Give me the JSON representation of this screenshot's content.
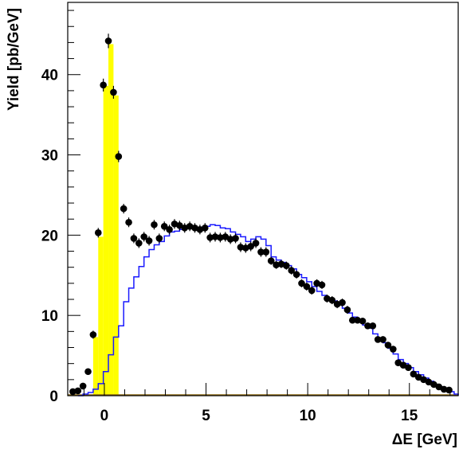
{
  "chart_data": {
    "type": "histogram",
    "xlabel": "ΔE [GeV]",
    "ylabel": "Yield [pb/GeV]",
    "xlim": [
      -1.8,
      17.4
    ],
    "ylim": [
      0,
      49
    ],
    "x_ticks": [
      0,
      5,
      10,
      15
    ],
    "y_ticks": [
      0,
      10,
      20,
      30,
      40
    ],
    "grid": false,
    "colors": {
      "signal_fill": "#ffff00",
      "mc_line": "#1a1aff",
      "data_points": "#000000",
      "baseline": "#8b6914"
    },
    "series": [
      {
        "kind": "data-points-with-errors",
        "points": [
          [
            -1.55,
            0.5,
            0.2
          ],
          [
            -1.3,
            0.6,
            0.2
          ],
          [
            -1.05,
            1.2,
            0.3
          ],
          [
            -0.8,
            3.0,
            0.4
          ],
          [
            -0.55,
            7.6,
            0.5
          ],
          [
            -0.3,
            20.3,
            0.6
          ],
          [
            -0.05,
            38.7,
            0.8
          ],
          [
            0.2,
            44.2,
            0.9
          ],
          [
            0.45,
            37.8,
            0.8
          ],
          [
            0.7,
            29.8,
            0.7
          ],
          [
            0.95,
            23.3,
            0.6
          ],
          [
            1.2,
            21.6,
            0.6
          ],
          [
            1.45,
            19.6,
            0.6
          ],
          [
            1.7,
            19.0,
            0.6
          ],
          [
            1.95,
            19.8,
            0.6
          ],
          [
            2.2,
            19.3,
            0.6
          ],
          [
            2.45,
            21.3,
            0.6
          ],
          [
            2.7,
            19.6,
            0.6
          ],
          [
            2.95,
            21.1,
            0.6
          ],
          [
            3.2,
            20.7,
            0.6
          ],
          [
            3.45,
            21.4,
            0.6
          ],
          [
            3.7,
            21.2,
            0.6
          ],
          [
            3.95,
            20.9,
            0.6
          ],
          [
            4.2,
            21.1,
            0.6
          ],
          [
            4.45,
            20.9,
            0.6
          ],
          [
            4.7,
            20.7,
            0.6
          ],
          [
            4.95,
            20.9,
            0.6
          ],
          [
            5.2,
            19.7,
            0.6
          ],
          [
            5.45,
            19.8,
            0.6
          ],
          [
            5.7,
            19.7,
            0.6
          ],
          [
            5.95,
            19.8,
            0.6
          ],
          [
            6.2,
            19.5,
            0.6
          ],
          [
            6.45,
            19.6,
            0.6
          ],
          [
            6.7,
            18.5,
            0.6
          ],
          [
            6.95,
            18.4,
            0.6
          ],
          [
            7.2,
            18.6,
            0.6
          ],
          [
            7.45,
            19.0,
            0.6
          ],
          [
            7.7,
            17.9,
            0.6
          ],
          [
            7.95,
            17.9,
            0.6
          ],
          [
            8.2,
            16.8,
            0.5
          ],
          [
            8.45,
            16.3,
            0.5
          ],
          [
            8.7,
            16.4,
            0.5
          ],
          [
            8.95,
            16.2,
            0.5
          ],
          [
            9.2,
            15.6,
            0.5
          ],
          [
            9.45,
            15.1,
            0.5
          ],
          [
            9.7,
            14.0,
            0.5
          ],
          [
            9.95,
            13.6,
            0.5
          ],
          [
            10.2,
            13.1,
            0.5
          ],
          [
            10.45,
            14.0,
            0.5
          ],
          [
            10.7,
            13.8,
            0.5
          ],
          [
            10.95,
            12.1,
            0.5
          ],
          [
            11.2,
            11.9,
            0.5
          ],
          [
            11.45,
            11.4,
            0.5
          ],
          [
            11.7,
            11.6,
            0.5
          ],
          [
            11.95,
            10.7,
            0.5
          ],
          [
            12.2,
            9.4,
            0.4
          ],
          [
            12.45,
            9.4,
            0.4
          ],
          [
            12.7,
            9.3,
            0.4
          ],
          [
            12.95,
            8.7,
            0.4
          ],
          [
            13.2,
            8.7,
            0.4
          ],
          [
            13.45,
            7.0,
            0.4
          ],
          [
            13.7,
            7.0,
            0.4
          ],
          [
            13.95,
            6.3,
            0.4
          ],
          [
            14.2,
            5.8,
            0.4
          ],
          [
            14.45,
            4.1,
            0.3
          ],
          [
            14.7,
            3.8,
            0.3
          ],
          [
            14.95,
            3.5,
            0.3
          ],
          [
            15.2,
            2.7,
            0.3
          ],
          [
            15.45,
            2.3,
            0.3
          ],
          [
            15.7,
            2.0,
            0.3
          ],
          [
            15.95,
            1.7,
            0.3
          ],
          [
            16.2,
            1.4,
            0.3
          ],
          [
            16.45,
            1.1,
            0.2
          ],
          [
            16.7,
            0.8,
            0.2
          ],
          [
            16.95,
            0.7,
            0.2
          ]
        ]
      },
      {
        "kind": "filled-histogram",
        "bin_width": 0.25,
        "bins": [
          [
            -0.8,
            0.0
          ],
          [
            -0.55,
            7.3
          ],
          [
            -0.3,
            19.8
          ],
          [
            -0.05,
            38.6
          ],
          [
            0.2,
            43.8
          ],
          [
            0.45,
            37.4
          ],
          [
            0.7,
            0.0
          ]
        ]
      },
      {
        "kind": "step-histogram",
        "bin_width": 0.25,
        "bins": [
          [
            -1.3,
            0.0
          ],
          [
            -1.05,
            0.2
          ],
          [
            -0.8,
            0.4
          ],
          [
            -0.55,
            0.8
          ],
          [
            -0.3,
            1.5
          ],
          [
            -0.05,
            3.0
          ],
          [
            0.2,
            5.1
          ],
          [
            0.45,
            7.3
          ],
          [
            0.7,
            8.7
          ],
          [
            0.95,
            11.7
          ],
          [
            1.2,
            13.4
          ],
          [
            1.45,
            14.8
          ],
          [
            1.7,
            16.1
          ],
          [
            1.95,
            17.3
          ],
          [
            2.2,
            18.2
          ],
          [
            2.45,
            18.8
          ],
          [
            2.7,
            19.2
          ],
          [
            2.95,
            19.9
          ],
          [
            3.2,
            20.4
          ],
          [
            3.45,
            20.5
          ],
          [
            3.7,
            20.7
          ],
          [
            3.95,
            20.9
          ],
          [
            4.2,
            20.9
          ],
          [
            4.45,
            20.8
          ],
          [
            4.7,
            21.0
          ],
          [
            4.95,
            21.1
          ],
          [
            5.2,
            21.3
          ],
          [
            5.45,
            21.2
          ],
          [
            5.7,
            20.9
          ],
          [
            5.95,
            20.8
          ],
          [
            6.2,
            20.4
          ],
          [
            6.45,
            20.1
          ],
          [
            6.7,
            19.8
          ],
          [
            6.95,
            19.2
          ],
          [
            7.2,
            19.5
          ],
          [
            7.45,
            19.8
          ],
          [
            7.7,
            19.5
          ],
          [
            7.95,
            18.7
          ],
          [
            8.2,
            17.3
          ],
          [
            8.45,
            16.9
          ],
          [
            8.7,
            16.6
          ],
          [
            8.95,
            16.2
          ],
          [
            9.2,
            15.8
          ],
          [
            9.45,
            15.1
          ],
          [
            9.7,
            14.7
          ],
          [
            9.95,
            14.2
          ],
          [
            10.2,
            13.6
          ],
          [
            10.45,
            13.0
          ],
          [
            10.7,
            12.5
          ],
          [
            10.95,
            12.1
          ],
          [
            11.2,
            11.8
          ],
          [
            11.45,
            11.4
          ],
          [
            11.7,
            10.9
          ],
          [
            11.95,
            10.3
          ],
          [
            12.2,
            9.8
          ],
          [
            12.45,
            9.3
          ],
          [
            12.7,
            8.8
          ],
          [
            12.95,
            8.4
          ],
          [
            13.2,
            7.7
          ],
          [
            13.45,
            7.1
          ],
          [
            13.7,
            6.6
          ],
          [
            13.95,
            5.9
          ],
          [
            14.2,
            5.2
          ],
          [
            14.45,
            4.5
          ],
          [
            14.7,
            4.0
          ],
          [
            14.95,
            3.5
          ],
          [
            15.2,
            3.0
          ],
          [
            15.45,
            2.6
          ],
          [
            15.7,
            2.2
          ],
          [
            15.95,
            1.8
          ],
          [
            16.2,
            1.4
          ],
          [
            16.45,
            1.1
          ],
          [
            16.7,
            0.8
          ],
          [
            16.95,
            0.5
          ],
          [
            17.2,
            0.2
          ],
          [
            17.45,
            0.0
          ]
        ]
      }
    ]
  }
}
